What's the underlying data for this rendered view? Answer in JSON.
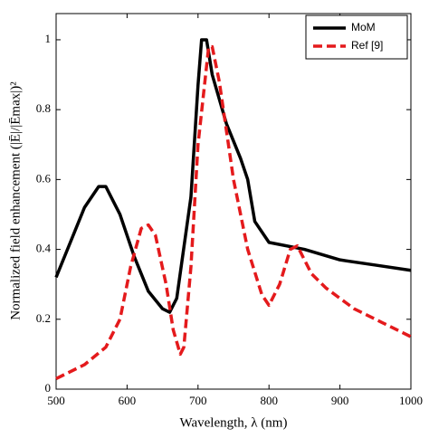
{
  "chart_data": {
    "type": "line",
    "x_label": "Wavelength, λ (nm)",
    "y_label": "Normalized field enhancement (|Ē|/|Ēmax|)²",
    "xlim": [
      500,
      1000
    ],
    "xticks": [
      500,
      600,
      700,
      800,
      900,
      1000
    ],
    "ylim": [
      0,
      1.075
    ],
    "yticks": [
      0,
      0.2,
      0.4,
      0.6,
      0.8,
      1
    ],
    "legend": "top-right",
    "series": [
      {
        "name": "MoM",
        "color": "#000000",
        "style": "solid",
        "x": [
          500,
          520,
          540,
          560,
          570,
          590,
          610,
          630,
          650,
          660,
          670,
          690,
          700,
          705,
          712,
          720,
          740,
          760,
          770,
          780,
          800,
          850,
          900,
          950,
          1000
        ],
        "values": [
          0.32,
          0.42,
          0.52,
          0.58,
          0.58,
          0.5,
          0.38,
          0.28,
          0.23,
          0.22,
          0.26,
          0.55,
          0.87,
          1.0,
          1.0,
          0.9,
          0.76,
          0.66,
          0.6,
          0.48,
          0.42,
          0.4,
          0.37,
          0.355,
          0.34
        ]
      },
      {
        "name": "Ref [9]",
        "color": "#e41a1c",
        "style": "dashed",
        "x": [
          500,
          540,
          570,
          590,
          605,
          620,
          630,
          640,
          655,
          665,
          675,
          680,
          690,
          700,
          715,
          720,
          730,
          750,
          770,
          790,
          800,
          815,
          830,
          840,
          860,
          880,
          920,
          960,
          1000
        ],
        "values": [
          0.03,
          0.07,
          0.12,
          0.2,
          0.35,
          0.46,
          0.47,
          0.44,
          0.3,
          0.17,
          0.1,
          0.12,
          0.35,
          0.7,
          0.98,
          0.98,
          0.88,
          0.6,
          0.4,
          0.27,
          0.24,
          0.3,
          0.4,
          0.41,
          0.33,
          0.29,
          0.23,
          0.19,
          0.15
        ]
      }
    ]
  }
}
